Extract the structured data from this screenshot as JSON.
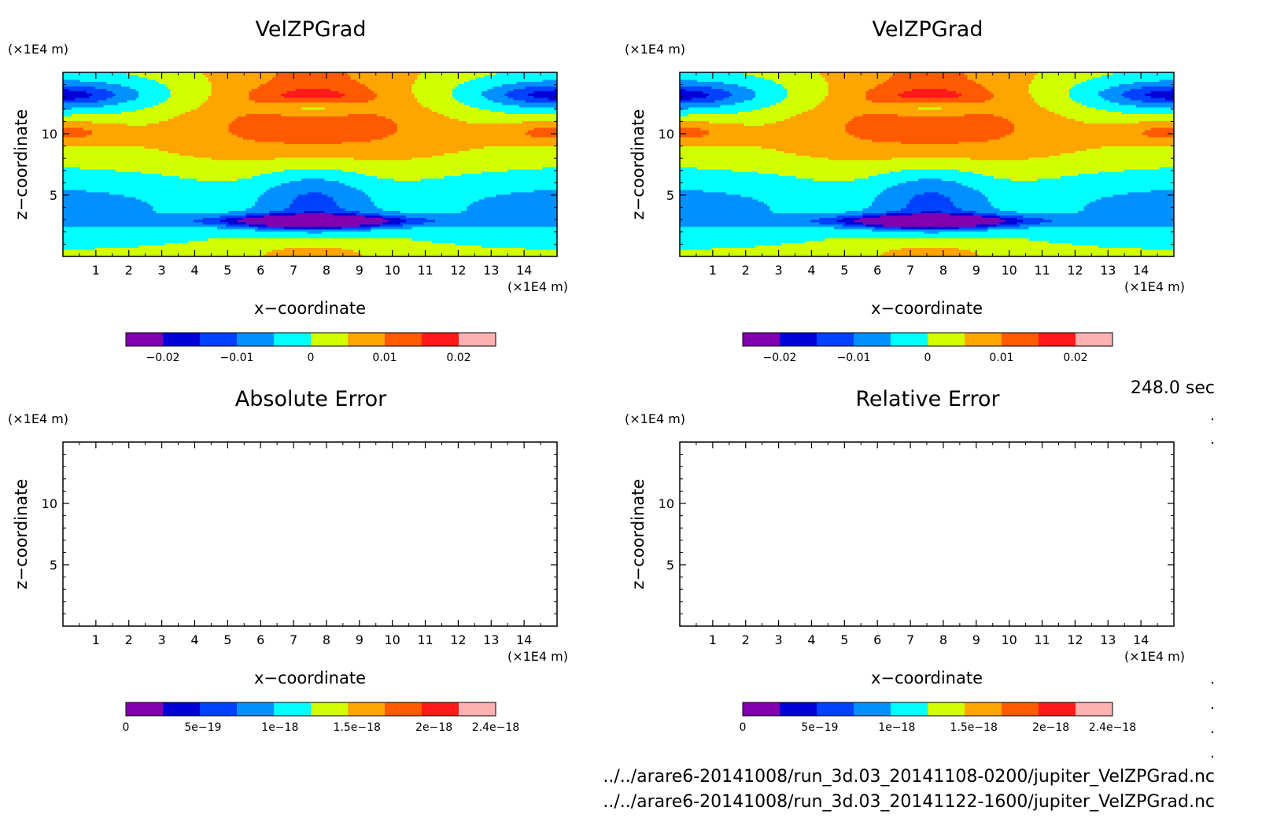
{
  "time_label": "248.0 sec",
  "file_paths": [
    "../../arare6-20141008/run_3d.03_20141108-0200/jupiter_VelZPGrad.nc",
    "../../arare6-20141008/run_3d.03_20141122-1600/jupiter_VelZPGrad.nc"
  ],
  "chart_data": [
    {
      "type": "heatmap",
      "title": "VelZPGrad",
      "xlabel": "x−coordinate",
      "ylabel": "z−coordinate",
      "x_unit": "(×1E4 m)",
      "y_unit": "(×1E4 m)",
      "xlim": [
        0,
        15
      ],
      "ylim": [
        0,
        15
      ],
      "xticks": [
        1,
        2,
        3,
        4,
        5,
        6,
        7,
        8,
        9,
        10,
        11,
        12,
        13,
        14
      ],
      "yticks": [
        5,
        10
      ],
      "filled": true,
      "colorbar": {
        "levels": [
          -0.025,
          -0.02,
          -0.015,
          -0.01,
          -0.005,
          0,
          0.005,
          0.01,
          0.015,
          0.02,
          0.025
        ],
        "colors": [
          "#8000b0",
          "#0000d8",
          "#0040ff",
          "#0090ff",
          "#00ffff",
          "#d2ff00",
          "#ffa500",
          "#ff5a00",
          "#ff1a1a",
          "#ffb0b0"
        ],
        "tick_values": [
          -0.02,
          -0.01,
          0,
          0.01,
          0.02
        ],
        "tick_labels": [
          "−0.02",
          "−0.01",
          "0",
          "0.01",
          "0.02"
        ]
      }
    },
    {
      "type": "heatmap",
      "title": "VelZPGrad",
      "xlabel": "x−coordinate",
      "ylabel": "z−coordinate",
      "x_unit": "(×1E4 m)",
      "y_unit": "(×1E4 m)",
      "xlim": [
        0,
        15
      ],
      "ylim": [
        0,
        15
      ],
      "xticks": [
        1,
        2,
        3,
        4,
        5,
        6,
        7,
        8,
        9,
        10,
        11,
        12,
        13,
        14
      ],
      "yticks": [
        5,
        10
      ],
      "filled": true,
      "colorbar": {
        "levels": [
          -0.025,
          -0.02,
          -0.015,
          -0.01,
          -0.005,
          0,
          0.005,
          0.01,
          0.015,
          0.02,
          0.025
        ],
        "colors": [
          "#8000b0",
          "#0000d8",
          "#0040ff",
          "#0090ff",
          "#00ffff",
          "#d2ff00",
          "#ffa500",
          "#ff5a00",
          "#ff1a1a",
          "#ffb0b0"
        ],
        "tick_values": [
          -0.02,
          -0.01,
          0,
          0.01,
          0.02
        ],
        "tick_labels": [
          "−0.02",
          "−0.01",
          "0",
          "0.01",
          "0.02"
        ]
      }
    },
    {
      "type": "heatmap",
      "title": "Absolute Error",
      "xlabel": "x−coordinate",
      "ylabel": "z−coordinate",
      "x_unit": "(×1E4 m)",
      "y_unit": "(×1E4 m)",
      "xlim": [
        0,
        15
      ],
      "ylim": [
        0,
        15
      ],
      "xticks": [
        1,
        2,
        3,
        4,
        5,
        6,
        7,
        8,
        9,
        10,
        11,
        12,
        13,
        14
      ],
      "yticks": [
        5,
        10
      ],
      "filled": false,
      "colorbar": {
        "levels": [
          0,
          2.4e-19,
          4.8e-19,
          7.2e-19,
          9.6e-19,
          1.2e-18,
          1.44e-18,
          1.68e-18,
          1.92e-18,
          2.16e-18,
          2.4e-18
        ],
        "colors": [
          "#8000b0",
          "#0000d8",
          "#0040ff",
          "#0090ff",
          "#00ffff",
          "#d2ff00",
          "#ffa500",
          "#ff5a00",
          "#ff1a1a",
          "#ffb0b0"
        ],
        "tick_values": [
          0,
          5e-19,
          1e-18,
          1.5e-18,
          2e-18,
          2.4e-18
        ],
        "tick_labels": [
          "0",
          "5e−19",
          "1e−18",
          "1.5e−18",
          "2e−18",
          "2.4e−18"
        ]
      }
    },
    {
      "type": "heatmap",
      "title": "Relative Error",
      "xlabel": "x−coordinate",
      "ylabel": "z−coordinate",
      "x_unit": "(×1E4 m)",
      "y_unit": "(×1E4 m)",
      "xlim": [
        0,
        15
      ],
      "ylim": [
        0,
        15
      ],
      "xticks": [
        1,
        2,
        3,
        4,
        5,
        6,
        7,
        8,
        9,
        10,
        11,
        12,
        13,
        14
      ],
      "yticks": [
        5,
        10
      ],
      "filled": false,
      "colorbar": {
        "levels": [
          0,
          2.4e-19,
          4.8e-19,
          7.2e-19,
          9.6e-19,
          1.2e-18,
          1.44e-18,
          1.68e-18,
          1.92e-18,
          2.16e-18,
          2.4e-18
        ],
        "colors": [
          "#8000b0",
          "#0000d8",
          "#0040ff",
          "#0090ff",
          "#00ffff",
          "#d2ff00",
          "#ffa500",
          "#ff5a00",
          "#ff1a1a",
          "#ffb0b0"
        ],
        "tick_values": [
          0,
          5e-19,
          1e-18,
          1.5e-18,
          2e-18,
          2.4e-18
        ],
        "tick_labels": [
          "0",
          "5e−19",
          "1e−18",
          "1.5e−18",
          "2e−18",
          "2.4e−18"
        ]
      }
    }
  ]
}
